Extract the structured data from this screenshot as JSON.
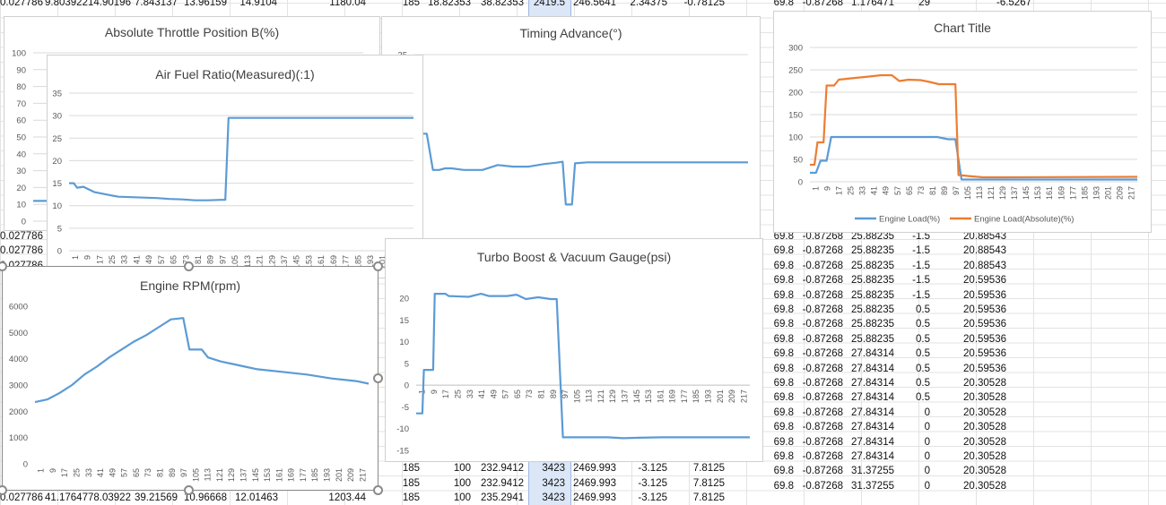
{
  "sheet": {
    "cells": [
      {
        "x": 0,
        "y": -4,
        "w": 46,
        "t": "0.027786"
      },
      {
        "x": 50,
        "y": -4,
        "w": 44,
        "t": "9.803922"
      },
      {
        "x": 98,
        "y": -4,
        "w": 47,
        "t": "14.90196"
      },
      {
        "x": 150,
        "y": -4,
        "w": 47,
        "t": "7.843137"
      },
      {
        "x": 205,
        "y": -4,
        "w": 47,
        "t": "13.96159"
      },
      {
        "x": 262,
        "y": -4,
        "w": 47,
        "t": "14.9104"
      },
      {
        "x": 360,
        "y": -4,
        "w": 48,
        "t": "1180.04"
      },
      {
        "x": 440,
        "y": -4,
        "w": 28,
        "t": "185"
      },
      {
        "x": 475,
        "y": -4,
        "w": 50,
        "t": "18.82353"
      },
      {
        "x": 528,
        "y": -4,
        "w": 56,
        "t": "38.82353"
      },
      {
        "x": 590,
        "y": -4,
        "w": 40,
        "t": "2419.5"
      },
      {
        "x": 637,
        "y": -4,
        "w": 50,
        "t": "246.5641"
      },
      {
        "x": 700,
        "y": -4,
        "w": 44,
        "t": "2.34375"
      },
      {
        "x": 758,
        "y": -4,
        "w": 50,
        "t": "-0.78125"
      },
      {
        "x": 855,
        "y": -4,
        "w": 30,
        "t": "69.8"
      },
      {
        "x": 1098,
        "y": -4,
        "w": 52,
        "t": "-6.5267"
      },
      {
        "x": 0,
        "y": 257,
        "w": 46,
        "t": "0.027786"
      },
      {
        "x": 0,
        "y": 273,
        "w": 46,
        "t": "0.027786"
      },
      {
        "x": 0,
        "y": 290,
        "w": 46,
        "t": "0.027786"
      },
      {
        "x": 0,
        "y": 549,
        "w": 46,
        "t": "0.027786"
      },
      {
        "x": 50,
        "y": 549,
        "w": 44,
        "t": "41.17647"
      },
      {
        "x": 98,
        "y": 549,
        "w": 47,
        "t": "78.03922"
      },
      {
        "x": 150,
        "y": 549,
        "w": 47,
        "t": "39.21569"
      },
      {
        "x": 205,
        "y": 549,
        "w": 47,
        "t": "10.96668"
      },
      {
        "x": 262,
        "y": 549,
        "w": 47,
        "t": "12.01463"
      },
      {
        "x": 360,
        "y": 549,
        "w": 48,
        "t": "1203.44"
      },
      {
        "x": 440,
        "y": 516,
        "w": 28,
        "t": "185"
      },
      {
        "x": 475,
        "y": 516,
        "w": 50,
        "t": "100"
      },
      {
        "x": 528,
        "y": 516,
        "w": 56,
        "t": "232.9412"
      },
      {
        "x": 590,
        "y": 516,
        "w": 40,
        "t": "3423"
      },
      {
        "x": 637,
        "y": 516,
        "w": 50,
        "t": "2469.993"
      },
      {
        "x": 700,
        "y": 516,
        "w": 44,
        "t": "-3.125"
      },
      {
        "x": 758,
        "y": 516,
        "w": 50,
        "t": "7.8125"
      },
      {
        "x": 440,
        "y": 533,
        "w": 28,
        "t": "185"
      },
      {
        "x": 475,
        "y": 533,
        "w": 50,
        "t": "100"
      },
      {
        "x": 528,
        "y": 533,
        "w": 56,
        "t": "232.9412"
      },
      {
        "x": 590,
        "y": 533,
        "w": 40,
        "t": "3423"
      },
      {
        "x": 637,
        "y": 533,
        "w": 50,
        "t": "2469.993"
      },
      {
        "x": 700,
        "y": 533,
        "w": 44,
        "t": "-3.125"
      },
      {
        "x": 758,
        "y": 533,
        "w": 50,
        "t": "7.8125"
      },
      {
        "x": 440,
        "y": 549,
        "w": 28,
        "t": "185"
      },
      {
        "x": 475,
        "y": 549,
        "w": 50,
        "t": "100"
      },
      {
        "x": 528,
        "y": 549,
        "w": 56,
        "t": "235.2941"
      },
      {
        "x": 590,
        "y": 549,
        "w": 40,
        "t": "3423"
      },
      {
        "x": 637,
        "y": 549,
        "w": 50,
        "t": "2469.993"
      },
      {
        "x": 700,
        "y": 549,
        "w": 44,
        "t": "-3.125"
      },
      {
        "x": 758,
        "y": 549,
        "w": 50,
        "t": "7.8125"
      }
    ],
    "right_rows": [
      [
        "69.8",
        "-0.87268",
        "25.88235",
        "-1.5",
        "20.88543"
      ],
      [
        "69.8",
        "-0.87268",
        "25.88235",
        "-1.5",
        "20.88543"
      ],
      [
        "69.8",
        "-0.87268",
        "25.88235",
        "-1.5",
        "20.88543"
      ],
      [
        "69.8",
        "-0.87268",
        "25.88235",
        "-1.5",
        "20.59536"
      ],
      [
        "69.8",
        "-0.87268",
        "25.88235",
        "-1.5",
        "20.59536"
      ],
      [
        "69.8",
        "-0.87268",
        "25.88235",
        "0.5",
        "20.59536"
      ],
      [
        "69.8",
        "-0.87268",
        "25.88235",
        "0.5",
        "20.59536"
      ],
      [
        "69.8",
        "-0.87268",
        "25.88235",
        "0.5",
        "20.59536"
      ],
      [
        "69.8",
        "-0.87268",
        "27.84314",
        "0.5",
        "20.59536"
      ],
      [
        "69.8",
        "-0.87268",
        "27.84314",
        "0.5",
        "20.59536"
      ],
      [
        "69.8",
        "-0.87268",
        "27.84314",
        "0.5",
        "20.30528"
      ],
      [
        "69.8",
        "-0.87268",
        "27.84314",
        "0.5",
        "20.30528"
      ],
      [
        "69.8",
        "-0.87268",
        "27.84314",
        "0",
        "20.30528"
      ],
      [
        "69.8",
        "-0.87268",
        "27.84314",
        "0",
        "20.30528"
      ],
      [
        "69.8",
        "-0.87268",
        "27.84314",
        "0",
        "20.30528"
      ],
      [
        "69.8",
        "-0.87268",
        "27.84314",
        "0",
        "20.30528"
      ],
      [
        "69.8",
        "-0.87268",
        "31.37255",
        "0",
        "20.30528"
      ],
      [
        "69.8",
        "-0.87268",
        "31.37255",
        "0",
        "20.30528"
      ]
    ],
    "top_right_extra": [
      "-0.87268",
      "1.176471",
      "29"
    ]
  },
  "charts": {
    "throttle": {
      "title": "Absolute Throttle Position B(%)"
    },
    "timing": {
      "title": "Timing Advance(°)"
    },
    "load": {
      "title": "Chart Title"
    },
    "afr": {
      "title": "Air Fuel Ratio(Measured)(:1)"
    },
    "rpm": {
      "title": "Engine RPM(rpm)"
    },
    "boost": {
      "title": "Turbo Boost & Vacuum Gauge(psi)"
    }
  },
  "chart_data": [
    {
      "type": "line",
      "title": "Absolute Throttle Position B(%)",
      "yticks": [
        0,
        10,
        20,
        30,
        40,
        50,
        60,
        70,
        80,
        90,
        100
      ],
      "ylim": [
        0,
        100
      ],
      "series": [
        {
          "values_partial": [
            [
              0,
              12
            ],
            [
              8,
              12
            ]
          ]
        }
      ]
    },
    {
      "type": "line",
      "title": "Timing Advance(°)",
      "yticks": [
        35
      ],
      "ylim": [
        -15,
        35
      ],
      "series": [
        {
          "points": [
            [
              1,
              25
            ],
            [
              5,
              11
            ],
            [
              9,
              11
            ],
            [
              13,
              0
            ],
            [
              17,
              0
            ],
            [
              21,
              0.5
            ],
            [
              25,
              0.5
            ],
            [
              33,
              0
            ],
            [
              45,
              0
            ],
            [
              55,
              1.5
            ],
            [
              65,
              1
            ],
            [
              75,
              1
            ],
            [
              85,
              1.8
            ],
            [
              93,
              2.2
            ],
            [
              97,
              2.5
            ],
            [
              99,
              -10.5
            ],
            [
              103,
              -10.5
            ],
            [
              105,
              2
            ],
            [
              113,
              2.3
            ],
            [
              217,
              2.3
            ]
          ]
        }
      ]
    },
    {
      "type": "line",
      "title": "Chart Title",
      "ylim": [
        0,
        300
      ],
      "yticks": [
        0,
        50,
        100,
        150,
        200,
        250,
        300
      ],
      "xticks": [
        "1",
        "9",
        "17",
        "25",
        "33",
        "41",
        "49",
        "57",
        "65",
        "73",
        "81",
        "89",
        "97",
        "105",
        "113",
        "121",
        "129",
        "137",
        "145",
        "153",
        "161",
        "169",
        "177",
        "185",
        "193",
        "201",
        "209",
        "217"
      ],
      "legend_position": "bottom",
      "series": [
        {
          "name": "Engine Load(%)",
          "color": "#5b9bd5",
          "points": [
            [
              1,
              20
            ],
            [
              5,
              20
            ],
            [
              8,
              47
            ],
            [
              12,
              47
            ],
            [
              15,
              100
            ],
            [
              25,
              100
            ],
            [
              45,
              100
            ],
            [
              65,
              100
            ],
            [
              85,
              100
            ],
            [
              92,
              95
            ],
            [
              97,
              95
            ],
            [
              101,
              5
            ],
            [
              217,
              5
            ]
          ]
        },
        {
          "name": "Engine Load(Absolute)(%)",
          "color": "#ed7d31",
          "points": [
            [
              1,
              38
            ],
            [
              4,
              38
            ],
            [
              6,
              88
            ],
            [
              10,
              88
            ],
            [
              12,
              215
            ],
            [
              17,
              215
            ],
            [
              20,
              228
            ],
            [
              28,
              231
            ],
            [
              40,
              235
            ],
            [
              48,
              238
            ],
            [
              55,
              238
            ],
            [
              60,
              225
            ],
            [
              66,
              228
            ],
            [
              74,
              227
            ],
            [
              80,
              223
            ],
            [
              86,
              218
            ],
            [
              92,
              218
            ],
            [
              97,
              218
            ],
            [
              99,
              15
            ],
            [
              105,
              13
            ],
            [
              115,
              10
            ],
            [
              130,
              10
            ],
            [
              217,
              11
            ]
          ]
        }
      ]
    },
    {
      "type": "line",
      "title": "Air Fuel Ratio(Measured)(:1)",
      "ylim": [
        0,
        35
      ],
      "yticks": [
        0,
        5,
        10,
        15,
        20,
        25,
        30,
        35
      ],
      "xticks": [
        "1",
        "9",
        "17",
        "25",
        "33",
        "41",
        "49",
        "57",
        "65",
        "73",
        "81",
        "89",
        "97",
        "105",
        "113",
        "121",
        "129",
        "137",
        "145",
        "153",
        "161",
        "169",
        "177",
        "185",
        "193",
        "201",
        "209",
        "217"
      ],
      "series": [
        {
          "points": [
            [
              1,
              15
            ],
            [
              4,
              15
            ],
            [
              6,
              14
            ],
            [
              10,
              14.2
            ],
            [
              17,
              13
            ],
            [
              24,
              12.5
            ],
            [
              32,
              12
            ],
            [
              48,
              11.8
            ],
            [
              56,
              11.7
            ],
            [
              64,
              11.5
            ],
            [
              72,
              11.4
            ],
            [
              80,
              11.2
            ],
            [
              88,
              11.2
            ],
            [
              96,
              11.3
            ],
            [
              99,
              11.3
            ],
            [
              101,
              29.5
            ],
            [
              217,
              29.5
            ]
          ]
        }
      ]
    },
    {
      "type": "line",
      "title": "Engine RPM(rpm)",
      "ylim": [
        0,
        6000
      ],
      "yticks": [
        0,
        1000,
        2000,
        3000,
        4000,
        5000,
        6000
      ],
      "xticks": [
        "1",
        "9",
        "17",
        "25",
        "33",
        "41",
        "49",
        "57",
        "65",
        "73",
        "81",
        "89",
        "97",
        "105",
        "113",
        "121",
        "129",
        "137",
        "145",
        "153",
        "161",
        "169",
        "177",
        "185",
        "193",
        "201",
        "209",
        "217"
      ],
      "series": [
        {
          "points": [
            [
              1,
              2350
            ],
            [
              9,
              2450
            ],
            [
              17,
              2700
            ],
            [
              25,
              3000
            ],
            [
              33,
              3400
            ],
            [
              41,
              3700
            ],
            [
              49,
              4050
            ],
            [
              57,
              4350
            ],
            [
              65,
              4650
            ],
            [
              73,
              4900
            ],
            [
              81,
              5200
            ],
            [
              89,
              5500
            ],
            [
              97,
              5550
            ],
            [
              101,
              4350
            ],
            [
              109,
              4350
            ],
            [
              113,
              4050
            ],
            [
              121,
              3900
            ],
            [
              129,
              3800
            ],
            [
              137,
              3700
            ],
            [
              145,
              3600
            ],
            [
              161,
              3500
            ],
            [
              177,
              3400
            ],
            [
              193,
              3250
            ],
            [
              209,
              3150
            ],
            [
              217,
              3050
            ]
          ]
        }
      ]
    },
    {
      "type": "line",
      "title": "Turbo Boost & Vacuum Gauge(psi)",
      "ylim": [
        -15,
        20
      ],
      "yticks": [
        -15,
        -10,
        -5,
        0,
        5,
        10,
        15,
        20
      ],
      "xticks": [
        "1",
        "9",
        "17",
        "25",
        "33",
        "41",
        "49",
        "57",
        "65",
        "73",
        "81",
        "89",
        "97",
        "105",
        "113",
        "121",
        "129",
        "137",
        "145",
        "153",
        "161",
        "169",
        "177",
        "185",
        "193",
        "201",
        "209",
        "217"
      ],
      "series": [
        {
          "points": [
            [
              1,
              -6.5
            ],
            [
              5,
              -6.5
            ],
            [
              6,
              3.5
            ],
            [
              12,
              3.5
            ],
            [
              13,
              21
            ],
            [
              20,
              21
            ],
            [
              22,
              20.5
            ],
            [
              35,
              20.3
            ],
            [
              43,
              21
            ],
            [
              48,
              20.5
            ],
            [
              60,
              20.5
            ],
            [
              66,
              20.8
            ],
            [
              72,
              19.8
            ],
            [
              80,
              20.2
            ],
            [
              88,
              19.8
            ],
            [
              92,
              19.8
            ],
            [
              96,
              -12
            ],
            [
              110,
              -12
            ],
            [
              125,
              -12
            ],
            [
              135,
              -12.2
            ],
            [
              145,
              -12.1
            ],
            [
              160,
              -12
            ],
            [
              175,
              -12
            ],
            [
              190,
              -12
            ],
            [
              205,
              -12
            ],
            [
              217,
              -12
            ]
          ]
        }
      ]
    }
  ]
}
